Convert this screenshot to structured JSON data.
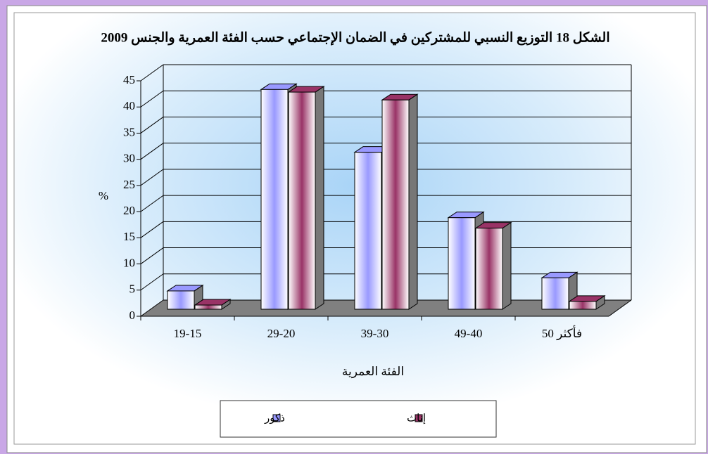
{
  "chart_data": {
    "type": "bar3d",
    "title": "الشكل 18 التوزيع النسبي للمشتركين في الضمان الإجتماعي حسب الفئة العمرية والجنس 2009",
    "y_label": "%",
    "x_label": "الفئة العمرية",
    "categories": [
      "19-15",
      "29-20",
      "39-30",
      "49-40",
      "فأكثر 50"
    ],
    "series": [
      {
        "name": "ذكور",
        "color": "#9999ff",
        "values": [
          3.5,
          42,
          30,
          17.5,
          6
        ]
      },
      {
        "name": "إناث",
        "color": "#993366",
        "values": [
          0.8,
          41.5,
          40,
          15.5,
          1.5
        ]
      }
    ],
    "ylim": [
      0,
      45
    ],
    "yticks": [
      0,
      5,
      10,
      15,
      20,
      25,
      30,
      35,
      40,
      45
    ],
    "grid": true
  }
}
